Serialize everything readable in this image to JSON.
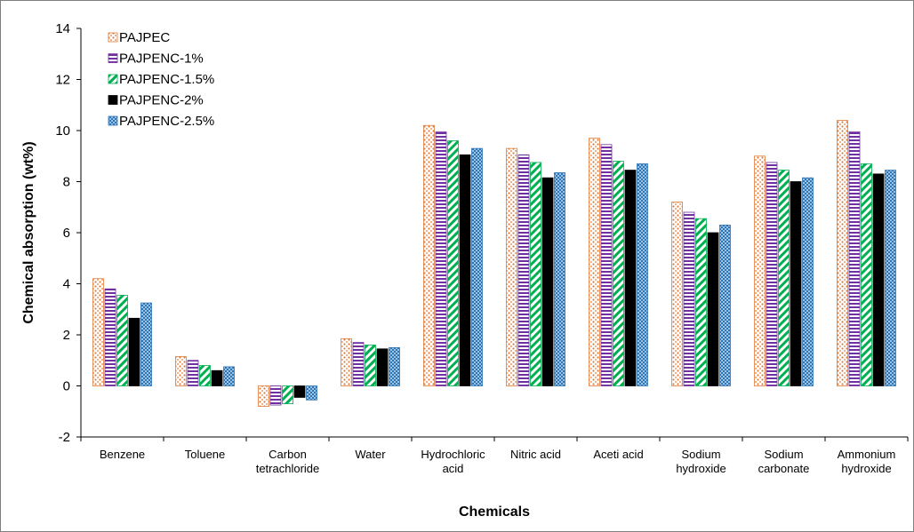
{
  "chart_data": {
    "type": "bar",
    "title": "",
    "xlabel": "Chemicals",
    "ylabel": "Chemical absorption  (wt%)",
    "ylim": [
      -2,
      14
    ],
    "yticks": [
      -2,
      0,
      2,
      4,
      6,
      8,
      10,
      12,
      14
    ],
    "grid": false,
    "legend_position": "top-left",
    "categories": [
      [
        "Benzene"
      ],
      [
        "Toluene"
      ],
      [
        "Carbon",
        "tetrachloride"
      ],
      [
        "Water"
      ],
      [
        "Hydrochloric",
        "acid"
      ],
      [
        "Nitric acid"
      ],
      [
        "Aceti acid"
      ],
      [
        "Sodium",
        "hydroxide"
      ],
      [
        "Sodium",
        "carbonate"
      ],
      [
        "Ammonium",
        "hydroxide"
      ]
    ],
    "series": [
      {
        "name": "PAJPEC",
        "color": "#e07b39",
        "pattern": "dots",
        "values": [
          4.2,
          1.15,
          -0.8,
          1.85,
          10.2,
          9.3,
          9.7,
          7.2,
          9.0,
          10.4
        ]
      },
      {
        "name": "PAJPENC-1%",
        "color": "#7030a0",
        "pattern": "hlines",
        "values": [
          3.8,
          1.0,
          -0.75,
          1.7,
          9.95,
          9.05,
          9.45,
          6.8,
          8.75,
          9.95
        ]
      },
      {
        "name": "PAJPENC-1.5%",
        "color": "#00b050",
        "pattern": "diag",
        "values": [
          3.55,
          0.8,
          -0.7,
          1.6,
          9.6,
          8.75,
          8.8,
          6.55,
          8.45,
          8.7
        ]
      },
      {
        "name": "PAJPENC-2%",
        "color": "#000000",
        "pattern": "solid",
        "values": [
          2.65,
          0.6,
          -0.45,
          1.45,
          9.05,
          8.15,
          8.45,
          6.0,
          8.0,
          8.3
        ]
      },
      {
        "name": "PAJPENC-2.5%",
        "color": "#2e75b6",
        "pattern": "checker",
        "values": [
          3.25,
          0.75,
          -0.55,
          1.5,
          9.3,
          8.35,
          8.7,
          6.3,
          8.15,
          8.45
        ]
      }
    ]
  }
}
